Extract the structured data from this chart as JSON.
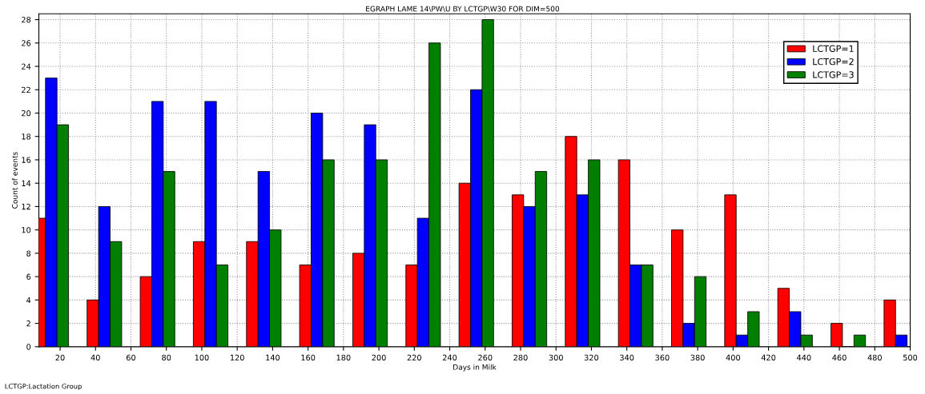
{
  "chart_data": {
    "type": "bar",
    "title": "EGRAPH LAME 14\\PW\\U BY LCTGP\\W30 FOR DIM=500",
    "xlabel": "Days in Milk",
    "ylabel": "Count of events",
    "x": [
      15,
      45,
      75,
      105,
      135,
      165,
      195,
      225,
      255,
      285,
      315,
      345,
      375,
      405,
      435,
      465,
      495
    ],
    "series": [
      {
        "name": "LCTGP=1",
        "color": "#ff0000",
        "values": [
          11,
          4,
          6,
          9,
          9,
          7,
          8,
          7,
          14,
          13,
          18,
          16,
          10,
          13,
          5,
          2,
          4
        ]
      },
      {
        "name": "LCTGP=2",
        "color": "#0000ff",
        "values": [
          23,
          12,
          21,
          21,
          15,
          20,
          19,
          11,
          22,
          12,
          13,
          7,
          2,
          1,
          3,
          0,
          1
        ]
      },
      {
        "name": "LCTGP=3",
        "color": "#007f00",
        "values": [
          19,
          9,
          15,
          7,
          10,
          16,
          16,
          26,
          28,
          15,
          16,
          7,
          6,
          3,
          1,
          1,
          0
        ]
      }
    ],
    "xlim": [
      8,
      500
    ],
    "xticks": [
      20,
      40,
      60,
      80,
      100,
      120,
      140,
      160,
      180,
      200,
      220,
      240,
      260,
      280,
      300,
      320,
      340,
      360,
      380,
      400,
      420,
      440,
      460,
      480,
      500
    ],
    "ylim": [
      0,
      28.5
    ],
    "yticks": [
      0,
      2,
      4,
      6,
      8,
      10,
      12,
      14,
      16,
      18,
      20,
      22,
      24,
      26,
      28
    ],
    "grid": true,
    "legend": "top right",
    "annotations": [
      "LCTGP:Lactation Group"
    ]
  }
}
